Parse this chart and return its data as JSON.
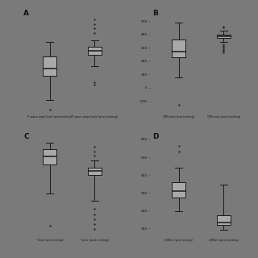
{
  "background_color": "#7a7a7a",
  "box_facecolor": "#a8a8a8",
  "box_edgecolor": "#1a1a1a",
  "median_color": "#1a1a1a",
  "whisker_color": "#1a1a1a",
  "flier_color": "#2a2a2a",
  "panels": [
    {
      "label": "A",
      "xlabel1": "P wave amplitude (pre-testing)",
      "xlabel2": "P wave amplitude (post-testing)",
      "ylim": [
        -0.5,
        1.3
      ],
      "yticks": [],
      "ytick_labels": [],
      "box1": {
        "q1": 0.15,
        "median": 0.28,
        "q3": 0.48,
        "whislo": -0.25,
        "whishi": 0.72,
        "fliers": [
          -0.42
        ]
      },
      "box2": {
        "q1": 0.5,
        "median": 0.57,
        "q3": 0.64,
        "whislo": 0.32,
        "whishi": 0.75,
        "fliers": [
          0.05,
          0.0,
          0.88,
          0.95,
          1.02,
          1.1
        ]
      }
    },
    {
      "label": "B",
      "xlabel1": "QRS axis (pre-testing)",
      "xlabel2": "QRS axis (post-testing)",
      "ylim": [
        -200,
        600
      ],
      "yticks": [
        -100,
        0,
        100,
        200,
        300,
        400,
        500
      ],
      "ytick_labels": [
        "-100",
        "0",
        "100",
        "200",
        "300",
        "400",
        "500"
      ],
      "box1": {
        "q1": 230,
        "median": 270,
        "q3": 360,
        "whislo": 80,
        "whishi": 490,
        "fliers": [
          -130
        ]
      },
      "box2": {
        "q1": 375,
        "median": 388,
        "q3": 400,
        "whislo": 345,
        "whishi": 430,
        "fliers": [
          265,
          275,
          285,
          295,
          305,
          315,
          325,
          450,
          460
        ]
      }
    },
    {
      "label": "C",
      "xlabel1": "T axis (pre-testing)",
      "xlabel2": "T axis (post-testing)",
      "ylim": [
        -1.5,
        1.4
      ],
      "yticks": [],
      "ytick_labels": [],
      "box1": {
        "q1": 0.48,
        "median": 0.7,
        "q3": 0.9,
        "whislo": -0.3,
        "whishi": 1.08,
        "fliers": [
          -1.18
        ]
      },
      "box2": {
        "q1": 0.2,
        "median": 0.3,
        "q3": 0.4,
        "whislo": -0.5,
        "whishi": 0.58,
        "fliers": [
          -0.72,
          -0.88,
          -1.02,
          -1.15,
          -1.28,
          0.72,
          0.84,
          0.95
        ]
      }
    },
    {
      "label": "D",
      "xlabel1": "iQRS/s (pre-testing)",
      "xlabel2": "iQRS/s (post-testing)",
      "ylim": [
        50,
        650
      ],
      "yticks": [
        100,
        200,
        300,
        400,
        500,
        600
      ],
      "ytick_labels": [
        "100",
        "200",
        "300",
        "400",
        "500",
        "600"
      ],
      "box1": {
        "q1": 275,
        "median": 310,
        "q3": 360,
        "whislo": 195,
        "whishi": 440,
        "fliers": [
          530,
          565
        ]
      },
      "box2": {
        "q1": 118,
        "median": 132,
        "q3": 172,
        "whislo": 92,
        "whishi": 348,
        "fliers": []
      }
    }
  ]
}
